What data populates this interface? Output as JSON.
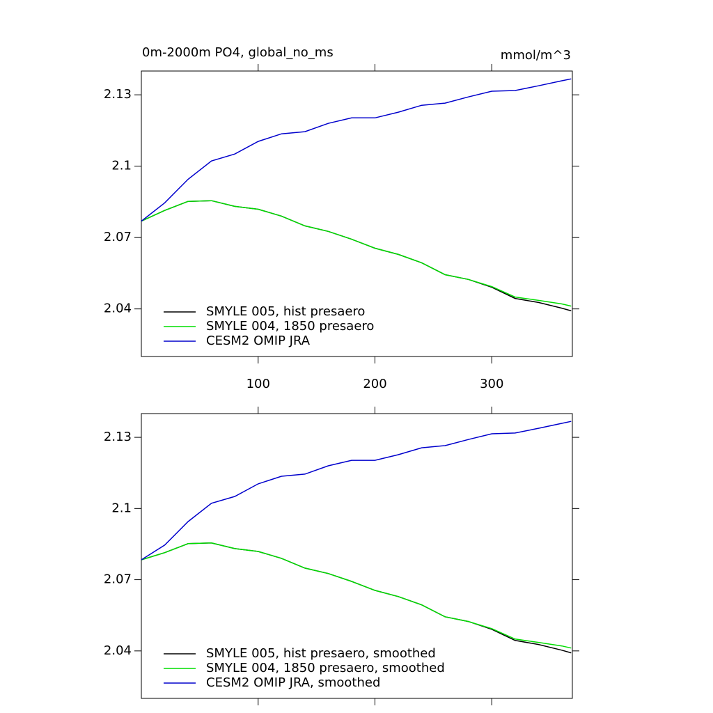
{
  "chart_data": [
    {
      "type": "line",
      "title": "0m-2000m PO4, global_no_ms",
      "units": "mmol/m^3",
      "x": [
        0,
        20,
        40,
        60,
        80,
        100,
        120,
        140,
        160,
        180,
        200,
        220,
        240,
        260,
        280,
        300,
        320,
        340,
        360,
        368
      ],
      "series": [
        {
          "name": "SMYLE 005, hist presaero",
          "color": "#000000",
          "values": [
            2.0769,
            2.0814,
            2.0852,
            2.0855,
            2.0831,
            2.0819,
            2.079,
            2.0749,
            2.0726,
            2.0693,
            2.0655,
            2.0629,
            2.0594,
            2.0544,
            2.0524,
            2.0491,
            2.0444,
            2.0427,
            2.0403,
            2.0392
          ]
        },
        {
          "name": "SMYLE 004, 1850 presaero",
          "color": "#00dd00",
          "values": [
            2.0769,
            2.0814,
            2.0852,
            2.0855,
            2.0831,
            2.0819,
            2.079,
            2.0749,
            2.0726,
            2.0693,
            2.0655,
            2.0629,
            2.0594,
            2.0544,
            2.0524,
            2.0494,
            2.045,
            2.0436,
            2.0421,
            2.0412
          ]
        },
        {
          "name": "CESM2 OMIP JRA",
          "color": "#0000cc",
          "values": [
            2.0769,
            2.0846,
            2.0945,
            2.1022,
            2.1051,
            2.1104,
            2.1136,
            2.1145,
            2.118,
            2.1203,
            2.1203,
            2.1227,
            2.1256,
            2.1265,
            2.1291,
            2.1315,
            2.1318,
            2.1338,
            2.1359,
            2.1367
          ]
        }
      ],
      "xlim": [
        0,
        369
      ],
      "xticks": [
        100,
        200,
        300
      ],
      "ylim": [
        2.02,
        2.14
      ],
      "yticks": [
        2.04,
        2.07,
        2.1,
        {
          "value": 2.13,
          "label": "2.13"
        }
      ],
      "legend": "lower-left"
    },
    {
      "type": "line",
      "x": [
        0,
        20,
        40,
        60,
        80,
        100,
        120,
        140,
        160,
        180,
        200,
        220,
        240,
        260,
        280,
        300,
        320,
        340,
        360,
        368
      ],
      "series": [
        {
          "name": "SMYLE 005, hist presaero, smoothed",
          "color": "#000000",
          "values": [
            2.0784,
            2.0814,
            2.0852,
            2.0855,
            2.0831,
            2.0819,
            2.079,
            2.0749,
            2.0726,
            2.0693,
            2.0655,
            2.0629,
            2.0594,
            2.0544,
            2.0524,
            2.0491,
            2.0444,
            2.0427,
            2.0403,
            2.0392
          ]
        },
        {
          "name": "SMYLE 004, 1850 presaero, smoothed",
          "color": "#00dd00",
          "values": [
            2.0784,
            2.0814,
            2.0852,
            2.0855,
            2.0831,
            2.0819,
            2.079,
            2.0749,
            2.0726,
            2.0693,
            2.0655,
            2.0629,
            2.0594,
            2.0544,
            2.0524,
            2.0494,
            2.045,
            2.0436,
            2.0421,
            2.0412
          ]
        },
        {
          "name": "CESM2 OMIP JRA, smoothed",
          "color": "#0000cc",
          "values": [
            2.0784,
            2.0846,
            2.0945,
            2.1022,
            2.1051,
            2.1104,
            2.1136,
            2.1145,
            2.118,
            2.1203,
            2.1203,
            2.1227,
            2.1256,
            2.1265,
            2.1291,
            2.1315,
            2.1318,
            2.1338,
            2.1359,
            2.1367
          ]
        }
      ],
      "xlim": [
        0,
        369
      ],
      "xticks": [
        {
          "value": 100,
          "label": null
        },
        {
          "value": 200,
          "label": null
        },
        {
          "value": 300,
          "label": null
        }
      ],
      "ylim": [
        2.02,
        2.14
      ],
      "yticks": [
        2.04,
        2.07,
        2.1,
        {
          "value": 2.13,
          "label": "2.13"
        }
      ],
      "legend": "lower-left"
    }
  ]
}
